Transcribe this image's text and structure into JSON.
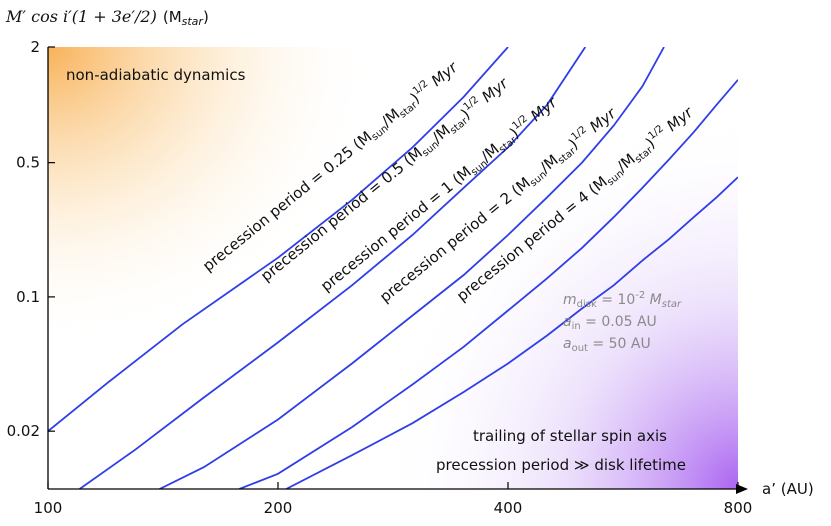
{
  "chart_data": {
    "type": "line",
    "xlabel": "a’ (AU)",
    "ylabel": "M′ cos i′(1 + 3e′/2) (M_star)",
    "ylabel_math": "M′ cos i′(1 + 3e′/2)",
    "ylabel_unit": "(Mstar)",
    "xscale": "log",
    "yscale": "log",
    "xlim": [
      100,
      800
    ],
    "ylim": [
      0.01,
      2
    ],
    "xticks": [
      100,
      200,
      400,
      800
    ],
    "xtick_labels": [
      "100",
      "200",
      "400",
      "800"
    ],
    "yticks": [
      2,
      0.5,
      0.1,
      0.02
    ],
    "ytick_labels": [
      "2",
      "0.5",
      "0.1",
      "0.02"
    ],
    "grid": false,
    "series": [
      {
        "name": "precession period = 0.25 (Msun/Mstar)^1/2 Myr",
        "period_myr": 0.25,
        "color": "#2f3ee6",
        "x": [
          100,
          120,
          150,
          200,
          250,
          300,
          350,
          400
        ],
        "y": [
          0.02,
          0.036,
          0.072,
          0.16,
          0.32,
          0.6,
          1.1,
          2.0
        ]
      },
      {
        "name": "precession period = 0.5 (Msun/Mstar)^1/2 Myr",
        "period_myr": 0.5,
        "color": "#2f3ee6",
        "x": [
          110,
          130,
          160,
          200,
          250,
          300,
          350,
          400,
          450,
          505
        ],
        "y": [
          0.01,
          0.016,
          0.03,
          0.058,
          0.115,
          0.21,
          0.37,
          0.6,
          1.0,
          2.0
        ]
      },
      {
        "name": "precession period = 1 (Msun/Mstar)^1/2 Myr",
        "period_myr": 1,
        "color": "#2f3ee6",
        "x": [
          140,
          160,
          200,
          250,
          300,
          350,
          400,
          450,
          500,
          550,
          600,
          640
        ],
        "y": [
          0.01,
          0.013,
          0.023,
          0.045,
          0.08,
          0.13,
          0.21,
          0.33,
          0.5,
          0.78,
          1.25,
          2.0
        ]
      },
      {
        "name": "precession period = 2 (Msun/Mstar)^1/2 Myr",
        "period_myr": 2,
        "color": "#2f3ee6",
        "x": [
          178,
          200,
          250,
          300,
          350,
          400,
          450,
          500,
          550,
          600,
          650,
          700,
          750,
          800
        ],
        "y": [
          0.01,
          0.012,
          0.021,
          0.035,
          0.055,
          0.085,
          0.125,
          0.18,
          0.26,
          0.37,
          0.52,
          0.72,
          1.0,
          1.35
        ]
      },
      {
        "name": "precession period = 4 (Msun/Mstar)^1/2 Myr",
        "period_myr": 4,
        "color": "#2f3ee6",
        "x": [
          205,
          250,
          300,
          350,
          400,
          450,
          500,
          550,
          600,
          650,
          700,
          750,
          800
        ],
        "y": [
          0.01,
          0.015,
          0.022,
          0.032,
          0.045,
          0.063,
          0.087,
          0.115,
          0.155,
          0.2,
          0.26,
          0.33,
          0.42
        ]
      }
    ],
    "curve_labels": [
      {
        "main": "precession period = 0.25 (M",
        "sub1": "sun",
        "mid": "/M",
        "sub2": "star",
        "close": ")",
        "sup": "1/2",
        "tail": " Myr"
      },
      {
        "main": "precession period = 0.5 (M",
        "sub1": "sun",
        "mid": "/M",
        "sub2": "star",
        "close": ")",
        "sup": "1/2",
        "tail": " Myr"
      },
      {
        "main": "precession period = 1 (M",
        "sub1": "sun",
        "mid": "/M",
        "sub2": "star",
        "close": ")",
        "sup": "1/2",
        "tail": " Myr"
      },
      {
        "main": "precession period = 2 (M",
        "sub1": "sun",
        "mid": "/M",
        "sub2": "star",
        "close": ")",
        "sup": "1/2",
        "tail": " Myr"
      },
      {
        "main": "precession period = 4 (M",
        "sub1": "sun",
        "mid": "/M",
        "sub2": "star",
        "close": ")",
        "sup": "1/2",
        "tail": " Myr"
      }
    ],
    "annotations": {
      "top_left": "non-adiabatic dynamics",
      "bottom_right_line1": "trailing of stellar spin axis",
      "bottom_right_line2": "precession period ≫ disk lifetime",
      "params": [
        {
          "sym": "m",
          "sub": "disk",
          "value": " =  10",
          "sup": "-2",
          "tail_italic": " M",
          "tail_sub": "star"
        },
        {
          "sym": "a",
          "sub": "in",
          "value": "  = 0.05 AU"
        },
        {
          "sym": "a",
          "sub": "out",
          "value": "  = 50 AU"
        }
      ]
    },
    "colors": {
      "curve": "#2f3ee6",
      "non_adiabatic_gradient": "#f7a43a",
      "trailing_gradient": "#a65cf0",
      "axis": "#000000"
    }
  }
}
